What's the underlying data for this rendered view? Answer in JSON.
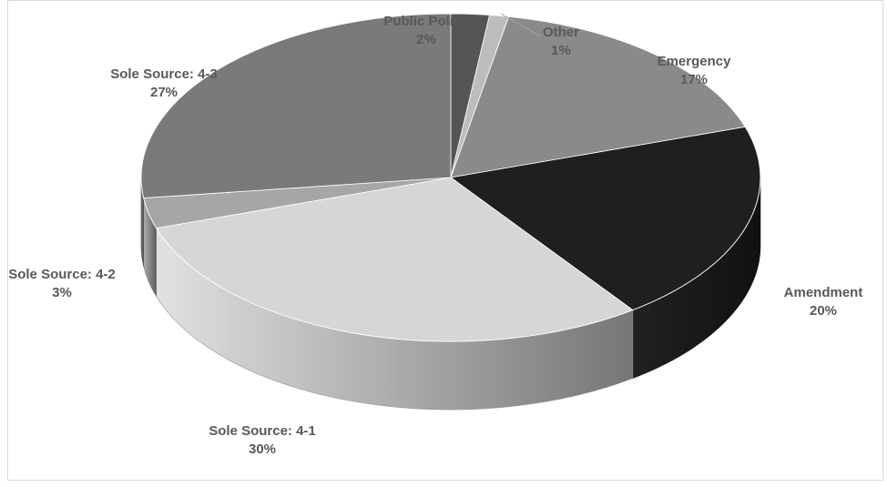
{
  "chart_data": {
    "type": "pie",
    "three_d": true,
    "title": "",
    "slices": [
      {
        "name": "Public Policy",
        "value": 2,
        "label": "2%",
        "color": "#555555"
      },
      {
        "name": "Other",
        "value": 1,
        "label": "1%",
        "color": "#bdbdbd"
      },
      {
        "name": "Emergency",
        "value": 17,
        "label": "17%",
        "color": "#8a8a8a"
      },
      {
        "name": "Amendment",
        "value": 20,
        "label": "20%",
        "color": "#1f1f1f"
      },
      {
        "name": "Sole Source: 4-1",
        "value": 30,
        "label": "30%",
        "color": "#d6d6d6"
      },
      {
        "name": "Sole Source: 4-2",
        "value": 3,
        "label": "3%",
        "color": "#a6a6a6"
      },
      {
        "name": "Sole Source: 4-3",
        "value": 27,
        "label": "27%",
        "color": "#7a7a7a"
      }
    ]
  }
}
